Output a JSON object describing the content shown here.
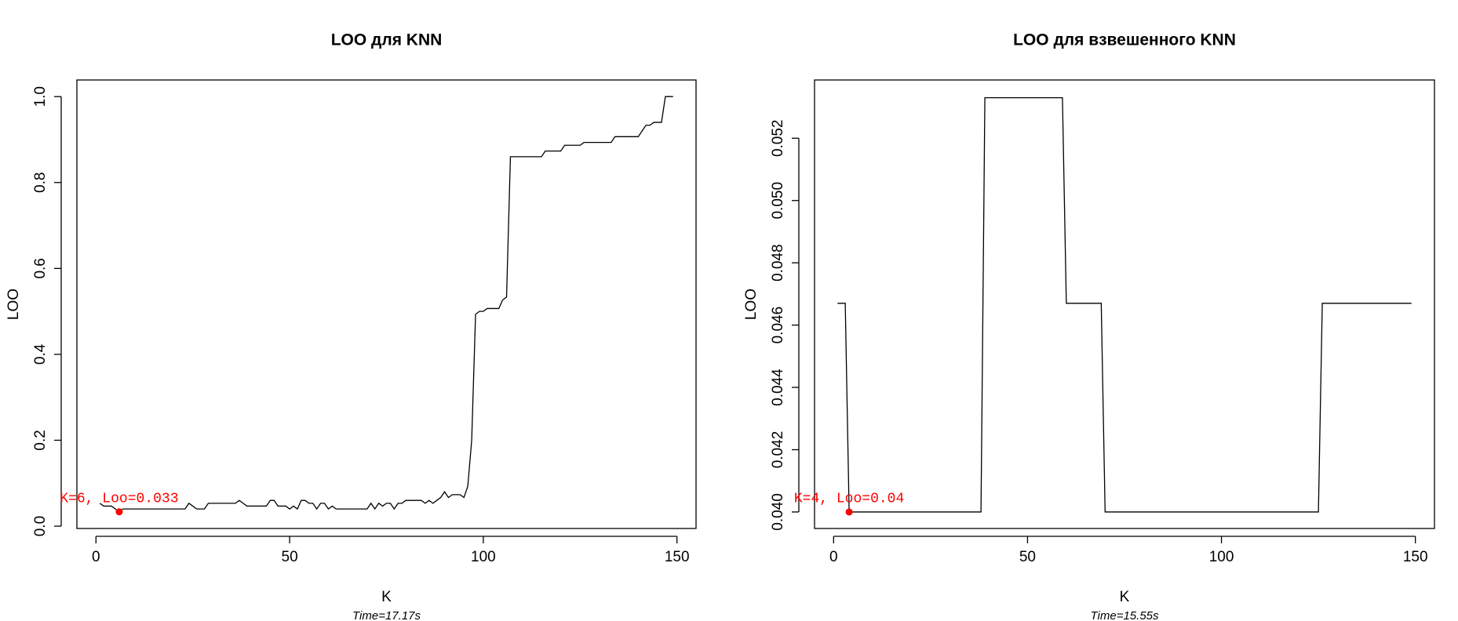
{
  "chart_data": [
    {
      "type": "line",
      "title": "LOO для KNN",
      "subtitle": "Time=17.17s",
      "x_label": "K",
      "y_label": "LOO",
      "color": "#000000",
      "x": [
        1,
        2,
        3,
        4,
        5,
        6,
        7,
        8,
        9,
        10,
        11,
        12,
        13,
        14,
        15,
        16,
        17,
        18,
        19,
        20,
        21,
        22,
        23,
        24,
        25,
        26,
        27,
        28,
        29,
        30,
        31,
        32,
        33,
        34,
        35,
        36,
        37,
        38,
        39,
        40,
        41,
        42,
        43,
        44,
        45,
        46,
        47,
        48,
        49,
        50,
        51,
        52,
        53,
        54,
        55,
        56,
        57,
        58,
        59,
        60,
        61,
        62,
        63,
        64,
        65,
        66,
        67,
        68,
        69,
        70,
        71,
        72,
        73,
        74,
        75,
        76,
        77,
        78,
        79,
        80,
        81,
        82,
        83,
        84,
        85,
        86,
        87,
        88,
        89,
        90,
        91,
        92,
        93,
        94,
        95,
        96,
        97,
        98,
        99,
        100,
        101,
        102,
        103,
        104,
        105,
        106,
        107,
        108,
        109,
        110,
        111,
        112,
        113,
        114,
        115,
        116,
        117,
        118,
        119,
        120,
        121,
        122,
        123,
        124,
        125,
        126,
        127,
        128,
        129,
        130,
        131,
        132,
        133,
        134,
        135,
        136,
        137,
        138,
        139,
        140,
        141,
        142,
        143,
        144,
        145,
        146,
        147,
        148,
        149
      ],
      "values": [
        0.0533,
        0.0467,
        0.0467,
        0.0467,
        0.04,
        0.0333,
        0.04,
        0.04,
        0.04,
        0.04,
        0.04,
        0.04,
        0.04,
        0.04,
        0.04,
        0.04,
        0.04,
        0.04,
        0.04,
        0.04,
        0.04,
        0.04,
        0.04,
        0.0533,
        0.0467,
        0.04,
        0.04,
        0.04,
        0.0533,
        0.0533,
        0.0533,
        0.0533,
        0.0533,
        0.0533,
        0.0533,
        0.0533,
        0.06,
        0.0533,
        0.0467,
        0.0467,
        0.0467,
        0.0467,
        0.0467,
        0.0467,
        0.06,
        0.06,
        0.0467,
        0.0467,
        0.0467,
        0.04,
        0.0467,
        0.04,
        0.06,
        0.06,
        0.0533,
        0.0533,
        0.04,
        0.0533,
        0.0533,
        0.04,
        0.0467,
        0.04,
        0.04,
        0.04,
        0.04,
        0.04,
        0.04,
        0.04,
        0.04,
        0.04,
        0.0533,
        0.04,
        0.0533,
        0.0467,
        0.0533,
        0.0533,
        0.04,
        0.0533,
        0.0533,
        0.06,
        0.06,
        0.06,
        0.06,
        0.06,
        0.0533,
        0.06,
        0.0533,
        0.06,
        0.0667,
        0.08,
        0.0667,
        0.0733,
        0.0733,
        0.0733,
        0.0667,
        0.0933,
        0.2,
        0.4933,
        0.5,
        0.5,
        0.5067,
        0.5067,
        0.5067,
        0.5067,
        0.5267,
        0.5333,
        0.86,
        0.86,
        0.86,
        0.86,
        0.86,
        0.86,
        0.86,
        0.86,
        0.86,
        0.8733,
        0.8733,
        0.8733,
        0.8733,
        0.8733,
        0.8867,
        0.8867,
        0.8867,
        0.8867,
        0.8867,
        0.8933,
        0.8933,
        0.8933,
        0.8933,
        0.8933,
        0.8933,
        0.8933,
        0.8933,
        0.9067,
        0.9067,
        0.9067,
        0.9067,
        0.9067,
        0.9067,
        0.9067,
        0.92,
        0.9333,
        0.9333,
        0.94,
        0.94,
        0.94,
        1.0,
        1.0,
        1.0
      ],
      "xlim": [
        -4.92,
        154.92
      ],
      "xticks": [
        0,
        50,
        100,
        150
      ],
      "ylim": [
        -0.0054,
        1.0387
      ],
      "yticks": [
        {
          "value": 0,
          "label": "0.0"
        },
        0.2,
        0.4,
        0.6,
        0.8,
        {
          "value": 1,
          "label": "1.0"
        }
      ],
      "highlight": {
        "x": 6,
        "y": 0.0333,
        "label": "K=6, Loo=0.033",
        "color": "#ff0000"
      }
    },
    {
      "type": "line",
      "title": "LOO для взвешенного KNN",
      "subtitle": "Time=15.55s",
      "x_label": "K",
      "y_label": "LOO",
      "color": "#000000",
      "x": [
        1,
        2,
        3,
        4,
        5,
        6,
        7,
        8,
        9,
        10,
        11,
        12,
        13,
        14,
        15,
        16,
        17,
        18,
        19,
        20,
        21,
        22,
        23,
        24,
        25,
        26,
        27,
        28,
        29,
        30,
        31,
        32,
        33,
        34,
        35,
        36,
        37,
        38,
        39,
        40,
        41,
        42,
        43,
        44,
        45,
        46,
        47,
        48,
        49,
        50,
        51,
        52,
        53,
        54,
        55,
        56,
        57,
        58,
        59,
        60,
        61,
        62,
        63,
        64,
        65,
        66,
        67,
        68,
        69,
        70,
        71,
        72,
        73,
        74,
        75,
        76,
        77,
        78,
        79,
        80,
        81,
        82,
        83,
        84,
        85,
        86,
        87,
        88,
        89,
        90,
        91,
        92,
        93,
        94,
        95,
        96,
        97,
        98,
        99,
        100,
        101,
        102,
        103,
        104,
        105,
        106,
        107,
        108,
        109,
        110,
        111,
        112,
        113,
        114,
        115,
        116,
        117,
        118,
        119,
        120,
        121,
        122,
        123,
        124,
        125,
        126,
        127,
        128,
        129,
        130,
        131,
        132,
        133,
        134,
        135,
        136,
        137,
        138,
        139,
        140,
        141,
        142,
        143,
        144,
        145,
        146,
        147,
        148,
        149
      ],
      "values": [
        0.0467,
        0.0467,
        0.0467,
        0.04,
        0.04,
        0.04,
        0.04,
        0.04,
        0.04,
        0.04,
        0.04,
        0.04,
        0.04,
        0.04,
        0.04,
        0.04,
        0.04,
        0.04,
        0.04,
        0.04,
        0.04,
        0.04,
        0.04,
        0.04,
        0.04,
        0.04,
        0.04,
        0.04,
        0.04,
        0.04,
        0.04,
        0.04,
        0.04,
        0.04,
        0.04,
        0.04,
        0.04,
        0.04,
        0.0533,
        0.0533,
        0.0533,
        0.0533,
        0.0533,
        0.0533,
        0.0533,
        0.0533,
        0.0533,
        0.0533,
        0.0533,
        0.0533,
        0.0533,
        0.0533,
        0.0533,
        0.0533,
        0.0533,
        0.0533,
        0.0533,
        0.0533,
        0.0533,
        0.0467,
        0.0467,
        0.0467,
        0.0467,
        0.0467,
        0.0467,
        0.0467,
        0.0467,
        0.0467,
        0.0467,
        0.04,
        0.04,
        0.04,
        0.04,
        0.04,
        0.04,
        0.04,
        0.04,
        0.04,
        0.04,
        0.04,
        0.04,
        0.04,
        0.04,
        0.04,
        0.04,
        0.04,
        0.04,
        0.04,
        0.04,
        0.04,
        0.04,
        0.04,
        0.04,
        0.04,
        0.04,
        0.04,
        0.04,
        0.04,
        0.04,
        0.04,
        0.04,
        0.04,
        0.04,
        0.04,
        0.04,
        0.04,
        0.04,
        0.04,
        0.04,
        0.04,
        0.04,
        0.04,
        0.04,
        0.04,
        0.04,
        0.04,
        0.04,
        0.04,
        0.04,
        0.04,
        0.04,
        0.04,
        0.04,
        0.04,
        0.04,
        0.0467,
        0.0467,
        0.0467,
        0.0467,
        0.0467,
        0.0467,
        0.0467,
        0.0467,
        0.0467,
        0.0467,
        0.0467,
        0.0467,
        0.0467,
        0.0467,
        0.0467,
        0.0467,
        0.0467,
        0.0467,
        0.0467,
        0.0467,
        0.0467,
        0.0467,
        0.0467,
        0.0467
      ],
      "xlim": [
        -4.92,
        154.92
      ],
      "xticks": [
        0,
        50,
        100,
        150
      ],
      "ylim": [
        0.03947,
        0.05387
      ],
      "yticks": [
        {
          "value": 0.04,
          "label": "0.040"
        },
        {
          "value": 0.042,
          "label": "0.042"
        },
        {
          "value": 0.044,
          "label": "0.044"
        },
        {
          "value": 0.046,
          "label": "0.046"
        },
        {
          "value": 0.048,
          "label": "0.048"
        },
        {
          "value": 0.05,
          "label": "0.050"
        },
        {
          "value": 0.052,
          "label": "0.052"
        }
      ],
      "highlight": {
        "x": 4,
        "y": 0.04,
        "label": "K=4, Loo=0.04",
        "color": "#ff0000"
      }
    }
  ]
}
